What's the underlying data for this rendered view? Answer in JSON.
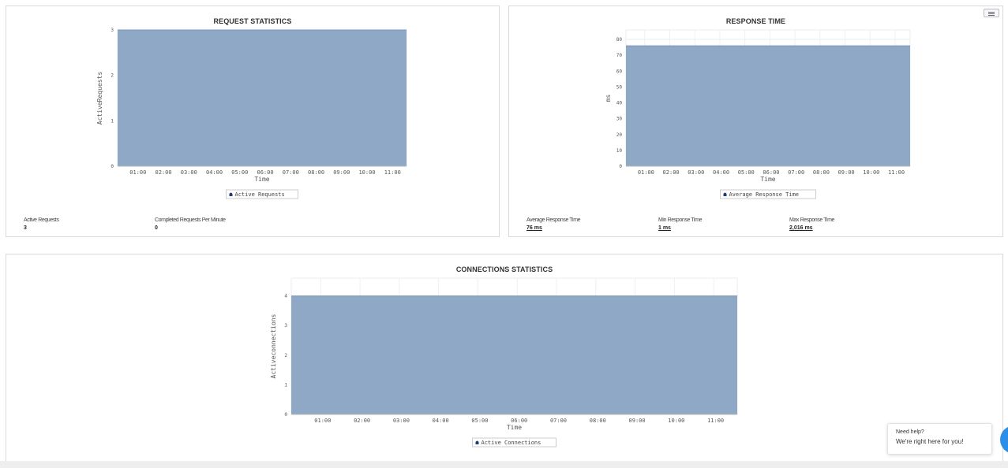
{
  "panels": {
    "request": {
      "title": "REQUEST STATISTICS",
      "stats": [
        {
          "label": "Active Requests",
          "value": "3",
          "link": false
        },
        {
          "label": "Completed Requests Per Minute",
          "value": "0",
          "link": false
        }
      ]
    },
    "response": {
      "title": "RESPONSE TIME",
      "stats": [
        {
          "label": "Average Response Time",
          "value": "76 ms",
          "link": true
        },
        {
          "label": "Min Response Time",
          "value": "1 ms",
          "link": true
        },
        {
          "label": "Max Response Time",
          "value": "2,016 ms",
          "link": true
        }
      ]
    },
    "connections": {
      "title": "CONNECTIONS STATISTICS"
    }
  },
  "help": {
    "title": "Need help?",
    "message": "We're right here for you!"
  },
  "colors": {
    "area_fill": "#8ea8c6",
    "area_stroke": "#7a97b9",
    "legend_icon": "#1d3d73"
  },
  "icons": {
    "menu": "hamburger-menu-icon",
    "chat": "chat-bubble-icon"
  },
  "chart_data": [
    {
      "id": "request",
      "type": "area",
      "title": "",
      "xlabel": "Time",
      "ylabel": "ActiveRequests",
      "x": [
        "01:00",
        "02:00",
        "03:00",
        "04:00",
        "05:00",
        "06:00",
        "07:00",
        "08:00",
        "09:00",
        "10:00",
        "11:00"
      ],
      "series": [
        {
          "name": "Active Requests",
          "values": [
            3,
            3,
            3,
            3,
            3,
            3,
            3,
            3,
            3,
            3,
            3
          ]
        }
      ],
      "ylim": [
        0,
        3
      ],
      "yticks": [
        0,
        1,
        2,
        3
      ],
      "grid": true,
      "legend": "bottom-center"
    },
    {
      "id": "response",
      "type": "area",
      "title": "",
      "xlabel": "Time",
      "ylabel": "ms",
      "x": [
        "01:00",
        "02:00",
        "03:00",
        "04:00",
        "05:00",
        "06:00",
        "07:00",
        "08:00",
        "09:00",
        "10:00",
        "11:00"
      ],
      "series": [
        {
          "name": "Average Response Time",
          "values": [
            76,
            76,
            76,
            76,
            76,
            76,
            76,
            76,
            76,
            76,
            76
          ]
        }
      ],
      "ylim": [
        0,
        86
      ],
      "yticks": [
        0,
        10,
        20,
        30,
        40,
        50,
        60,
        70,
        80
      ],
      "grid": true,
      "legend": "bottom-center"
    },
    {
      "id": "connections",
      "type": "area",
      "title": "",
      "xlabel": "Time",
      "ylabel": "Activeconnections",
      "x": [
        "01:00",
        "02:00",
        "03:00",
        "04:00",
        "05:00",
        "06:00",
        "07:00",
        "08:00",
        "09:00",
        "10:00",
        "11:00"
      ],
      "series": [
        {
          "name": "Active Connections",
          "values": [
            4,
            4,
            4,
            4,
            4,
            4,
            4,
            4,
            4,
            4,
            4
          ]
        }
      ],
      "ylim": [
        0,
        4.6
      ],
      "yticks": [
        0,
        1,
        2,
        3,
        4
      ],
      "grid": true,
      "legend": "bottom-center"
    }
  ]
}
